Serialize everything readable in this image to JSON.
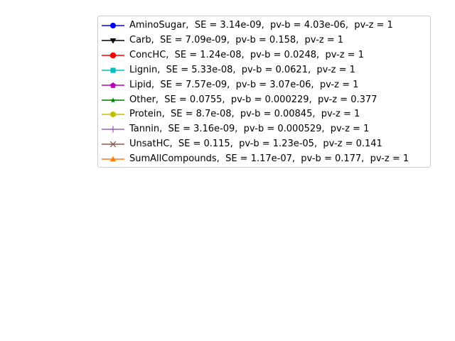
{
  "chart_data": {
    "type": "line",
    "title": "",
    "xlabel": "",
    "ylabel": "",
    "legend_position": "top-right",
    "legend_frame": true,
    "grid": false,
    "axes_visible": false,
    "series": [
      {
        "name": "AminoSugar,  SE = 3.14e-09,  pv-b = 4.03e-06,  pv-z = 1",
        "color": "#0000ff",
        "marker": "circle",
        "values": []
      },
      {
        "name": "Carb,  SE = 7.09e-09,  pv-b = 0.158,  pv-z = 1",
        "color": "#000000",
        "marker": "triangle-down",
        "values": []
      },
      {
        "name": "ConcHC,  SE = 1.24e-08,  pv-b = 0.0248,  pv-z = 1",
        "color": "#ff0000",
        "marker": "octagon",
        "values": []
      },
      {
        "name": "Lignin,  SE = 5.33e-08,  pv-b = 0.0621,  pv-z = 1",
        "color": "#00bfbf",
        "marker": "square",
        "values": []
      },
      {
        "name": "Lipid,  SE = 7.57e-09,  pv-b = 3.07e-06,  pv-z = 1",
        "color": "#bf00bf",
        "marker": "pentagon",
        "values": []
      },
      {
        "name": "Other,  SE = 0.0755,  pv-b = 0.000229,  pv-z = 0.377",
        "color": "#008000",
        "marker": "star",
        "values": []
      },
      {
        "name": "Protein,  SE = 8.7e-08,  pv-b = 0.00845,  pv-z = 1",
        "color": "#bfbf00",
        "marker": "hexagon",
        "values": []
      },
      {
        "name": "Tannin,  SE = 3.16e-09,  pv-b = 0.000529,  pv-z = 1",
        "color": "#9467bd",
        "marker": "plus",
        "values": []
      },
      {
        "name": "UnsatHC,  SE = 0.115,  pv-b = 1.23e-05,  pv-z = 0.141",
        "color": "#8c564b",
        "marker": "x",
        "values": []
      },
      {
        "name": "SumAllCompounds,  SE = 1.17e-07,  pv-b = 0.177,  pv-z = 1",
        "color": "#ff7f0e",
        "marker": "triangle-up",
        "values": []
      }
    ]
  }
}
